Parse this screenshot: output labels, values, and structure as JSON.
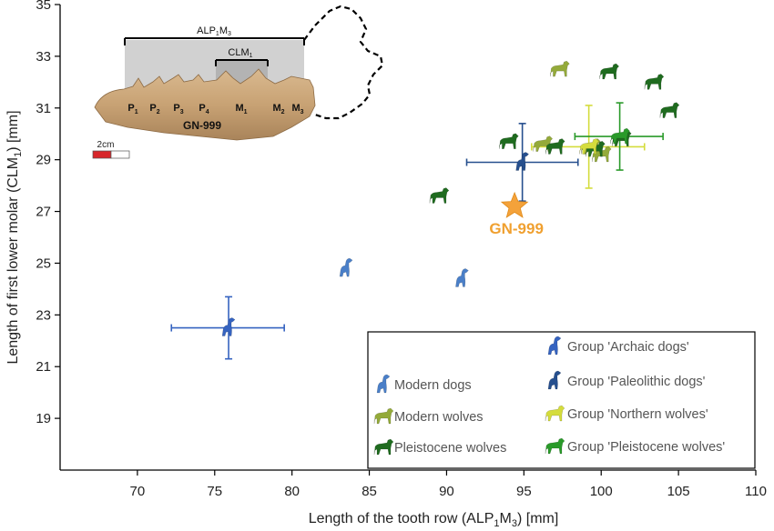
{
  "chart_data": {
    "type": "scatter",
    "title": "",
    "xlabel": "Length of the tooth row (ALP",
    "xlabel_sub": "1",
    "xlabel_mid": "M",
    "xlabel_sub2": "3",
    "xlabel_end": ") [mm]",
    "ylabel": "Length of first lower molar (CLM",
    "ylabel_sub": "1",
    "ylabel_end": ") [mm]",
    "xlim": [
      65,
      110
    ],
    "ylim": [
      17,
      35
    ],
    "xticks": [
      "70",
      "75",
      "80",
      "85",
      "90",
      "95",
      "100",
      "105",
      "110"
    ],
    "yticks": [
      "19",
      "21",
      "23",
      "25",
      "27",
      "29",
      "31",
      "33",
      "35"
    ],
    "xtick_values": [
      70,
      75,
      80,
      85,
      90,
      95,
      100,
      105,
      110
    ],
    "ytick_values": [
      19,
      21,
      23,
      25,
      27,
      29,
      31,
      33,
      35
    ],
    "colors": {
      "modern_dogs": "#4a7fc8",
      "modern_wolves": "#94aa3a",
      "pleistocene_wolves": "#1f6b1f",
      "archaic_dogs": "#3563c0",
      "paleolithic_dogs": "#264f8e",
      "northern_wolves": "#d4dc3c",
      "group_pleistocene": "#2a9a2a",
      "gn999": "#f0a030"
    },
    "series": [
      {
        "name": "Modern dogs",
        "points": [
          [
            83.5,
            24.8
          ],
          [
            91.0,
            24.4
          ]
        ]
      },
      {
        "name": "Modern wolves",
        "points": [
          [
            97.3,
            32.5
          ],
          [
            96.2,
            29.6
          ],
          [
            99.3,
            29.5
          ],
          [
            100.0,
            29.2
          ]
        ]
      },
      {
        "name": "Pleistocene wolves",
        "points": [
          [
            89.5,
            27.6
          ],
          [
            94.0,
            29.7
          ],
          [
            97.0,
            29.5
          ],
          [
            100.5,
            32.4
          ],
          [
            103.4,
            32.0
          ],
          [
            104.4,
            30.9
          ],
          [
            99.6,
            29.4
          ],
          [
            101.3,
            29.8
          ]
        ]
      }
    ],
    "group_means": [
      {
        "name": "Group 'Archaic dogs'",
        "x": 75.9,
        "y": 22.5,
        "xerr": [
          72.2,
          79.5
        ],
        "yerr": [
          21.3,
          23.7
        ]
      },
      {
        "name": "Group 'Paleolithic dogs'",
        "x": 94.9,
        "y": 28.9,
        "xerr": [
          91.3,
          98.5
        ],
        "yerr": [
          27.4,
          30.4
        ]
      },
      {
        "name": "Group 'Northern wolves'",
        "x": 99.2,
        "y": 29.5,
        "xerr": [
          95.5,
          102.8
        ],
        "yerr": [
          27.9,
          31.1
        ]
      },
      {
        "name": "Group 'Pleistocene wolves'",
        "x": 101.2,
        "y": 29.9,
        "xerr": [
          98.3,
          104.0
        ],
        "yerr": [
          28.6,
          31.2
        ]
      }
    ],
    "specimen": {
      "label": "GN-999",
      "x": 94.4,
      "y": 27.2
    },
    "legend": {
      "placement": "bottom-right",
      "left": [
        "Modern dogs",
        "Modern wolves",
        "Pleistocene wolves"
      ],
      "right": [
        "Group 'Archaic dogs'",
        "Group 'Paleolithic dogs'",
        "Group 'Northern wolves'",
        "Group 'Pleistocene wolves'"
      ]
    },
    "inset": {
      "specimen_label": "GN-999",
      "alp": "ALP",
      "alp_sub1": "1",
      "alp_m": "M",
      "alp_sub3": "3",
      "clm": "CLM",
      "clm_sub": "1",
      "teeth": [
        {
          "l": "P",
          "s": "1"
        },
        {
          "l": "P",
          "s": "2"
        },
        {
          "l": "P",
          "s": "3"
        },
        {
          "l": "P",
          "s": "4"
        },
        {
          "l": "M",
          "s": "1"
        },
        {
          "l": "M",
          "s": "2"
        },
        {
          "l": "M",
          "s": "3"
        }
      ],
      "scale": "2cm"
    }
  }
}
